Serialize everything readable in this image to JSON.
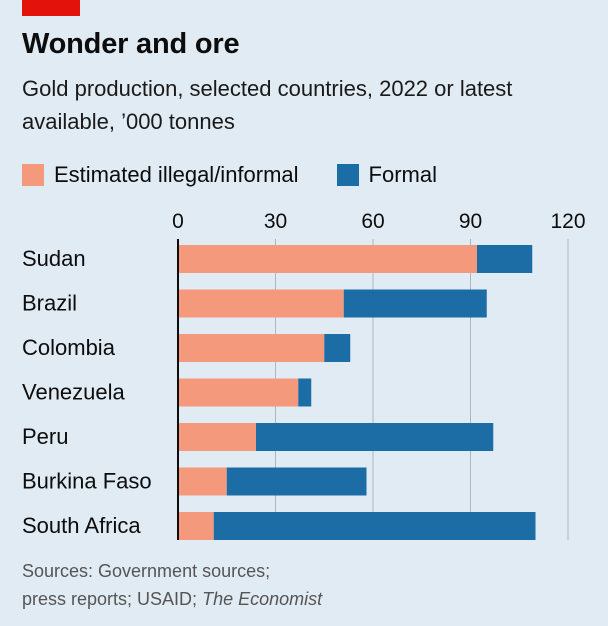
{
  "header": {
    "title": "Wonder and ore",
    "subtitle": "Gold production, selected countries, 2022 or latest available, ’000 tonnes"
  },
  "colors": {
    "brand_tag": "#e3120b",
    "informal": "#f4997b",
    "formal": "#1c6da6",
    "background": "#e1ebf3",
    "gridline": "#aab8c3"
  },
  "footer": {
    "sources_label": "Sources: Government sources;",
    "sources_line2": "press reports; USAID;",
    "sources_italic": "The Economist"
  },
  "chart_data": {
    "type": "bar",
    "orientation": "horizontal",
    "stacked": true,
    "categories": [
      "Sudan",
      "Brazil",
      "Colombia",
      "Venezuela",
      "Peru",
      "Burkina Faso",
      "South Africa"
    ],
    "series": [
      {
        "name": "Estimated illegal/informal",
        "values": [
          92,
          51,
          45,
          37,
          24,
          15,
          11
        ]
      },
      {
        "name": "Formal",
        "values": [
          17,
          44,
          8,
          4,
          73,
          43,
          99
        ]
      }
    ],
    "xlim": [
      0,
      120
    ],
    "xticks": [
      0,
      30,
      60,
      90,
      120
    ],
    "xlabel": "",
    "ylabel": "",
    "grid": true,
    "legend_position": "top-left"
  }
}
